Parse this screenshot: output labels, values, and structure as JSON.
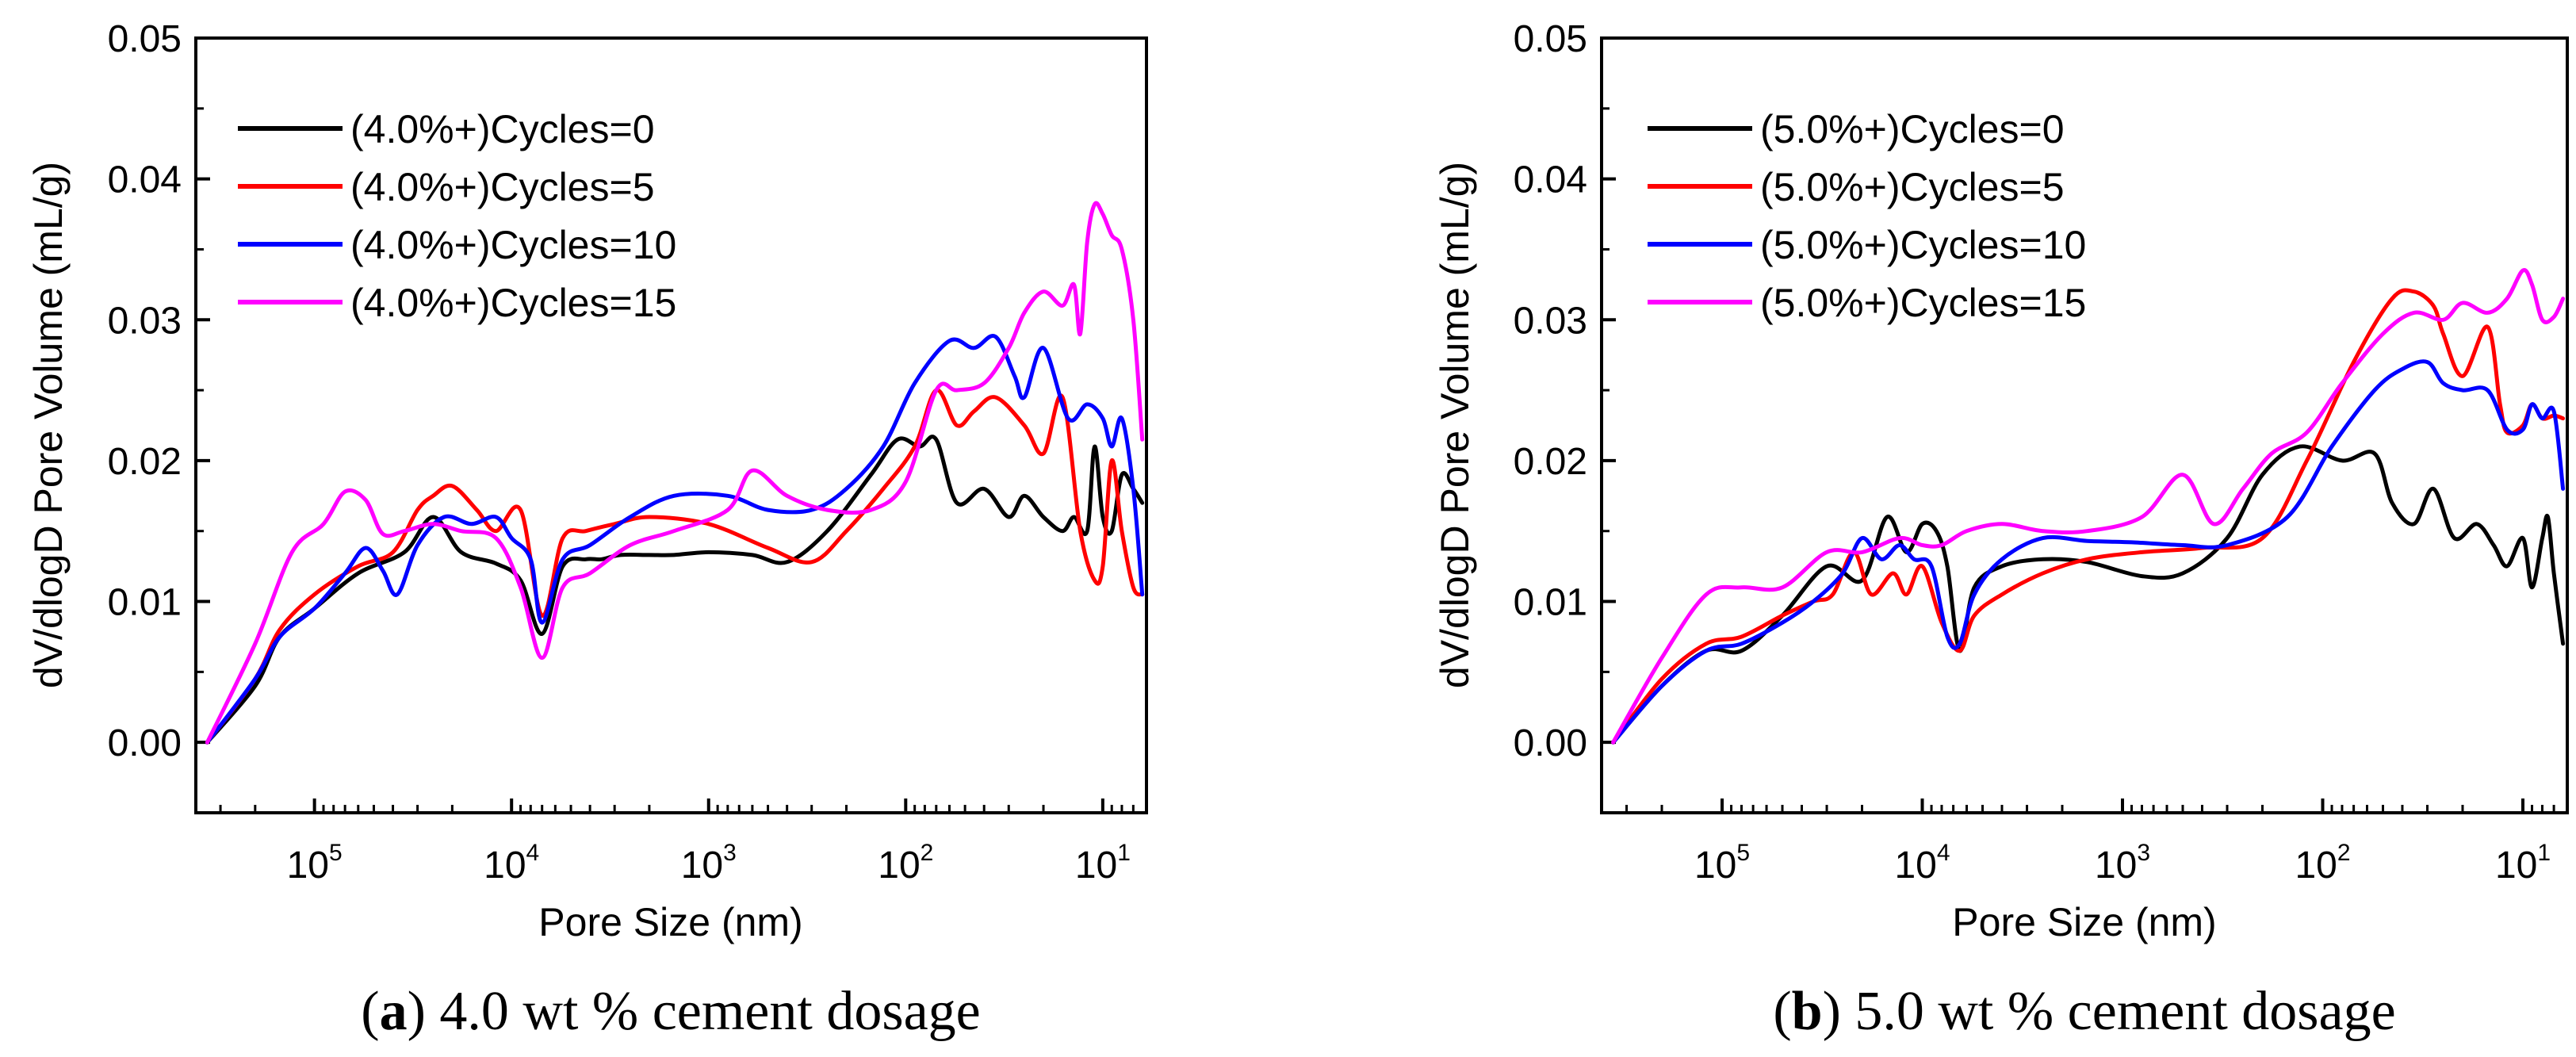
{
  "chart_data": [
    {
      "type": "line",
      "caption_letter": "a",
      "caption_text": " 4.0 wt % cement dosage",
      "xlabel": "Pore Size (nm)",
      "ylabel": "dV/dlogD Pore Volume (mL/g)",
      "x_scale": "log-reversed",
      "xlim": [
        400000,
        6
      ],
      "ylim": [
        -0.005,
        0.05
      ],
      "yticks": [
        "0.00",
        "0.01",
        "0.02",
        "0.03",
        "0.04",
        "0.05"
      ],
      "xticks": [
        {
          "base": "10",
          "exp": "5"
        },
        {
          "base": "10",
          "exp": "4"
        },
        {
          "base": "10",
          "exp": "3"
        },
        {
          "base": "10",
          "exp": "2"
        },
        {
          "base": "10",
          "exp": "1"
        }
      ],
      "grid": false,
      "legend_position": "top-left",
      "series": [
        {
          "name": "(4.0%+)Cycles=0",
          "color": "#000000",
          "x": [
            350000,
            200000,
            150000,
            100000,
            60000,
            35000,
            25000,
            18000,
            12000,
            9000,
            7000,
            5500,
            4200,
            3500,
            2800,
            2000,
            1500,
            1000,
            600,
            400,
            250,
            150,
            110,
            85,
            70,
            55,
            40,
            30,
            25,
            20,
            16,
            14,
            12,
            11,
            10,
            9,
            8,
            7,
            6.3
          ],
          "y": [
            0.0,
            0.004,
            0.0075,
            0.0095,
            0.012,
            0.0135,
            0.016,
            0.0135,
            0.0127,
            0.0115,
            0.0077,
            0.0125,
            0.013,
            0.013,
            0.0133,
            0.0133,
            0.0133,
            0.0135,
            0.0133,
            0.0128,
            0.015,
            0.019,
            0.0215,
            0.021,
            0.0215,
            0.017,
            0.018,
            0.016,
            0.0175,
            0.016,
            0.015,
            0.016,
            0.015,
            0.021,
            0.016,
            0.015,
            0.019,
            0.018,
            0.017
          ]
        },
        {
          "name": "(4.0%+)Cycles=5",
          "color": "#ff0000",
          "x": [
            350000,
            200000,
            150000,
            100000,
            60000,
            40000,
            30000,
            25000,
            20000,
            15000,
            12000,
            9000,
            7000,
            5500,
            4200,
            3000,
            2000,
            1000,
            500,
            300,
            200,
            130,
            90,
            70,
            55,
            45,
            35,
            25,
            20,
            16,
            13,
            11,
            10,
            9,
            8,
            7,
            6.3
          ],
          "y": [
            0.0,
            0.0045,
            0.008,
            0.0105,
            0.0125,
            0.0135,
            0.0165,
            0.0175,
            0.0182,
            0.0165,
            0.015,
            0.0165,
            0.009,
            0.0145,
            0.015,
            0.0155,
            0.016,
            0.0155,
            0.0138,
            0.0128,
            0.015,
            0.018,
            0.021,
            0.025,
            0.0225,
            0.0235,
            0.0245,
            0.0225,
            0.0205,
            0.0245,
            0.015,
            0.0115,
            0.0125,
            0.02,
            0.015,
            0.011,
            0.0105
          ]
        },
        {
          "name": "(4.0%+)Cycles=10",
          "color": "#0000ff",
          "x": [
            350000,
            200000,
            150000,
            100000,
            70000,
            55000,
            45000,
            38000,
            30000,
            22000,
            16000,
            12000,
            10000,
            8000,
            7000,
            5500,
            4000,
            2500,
            1500,
            800,
            500,
            300,
            200,
            130,
            90,
            60,
            45,
            35,
            28,
            25,
            20,
            15,
            12,
            10,
            9,
            8,
            7,
            6.3
          ],
          "y": [
            0.0,
            0.0045,
            0.0075,
            0.0095,
            0.012,
            0.0138,
            0.0122,
            0.0105,
            0.014,
            0.016,
            0.0155,
            0.016,
            0.0145,
            0.013,
            0.0085,
            0.013,
            0.014,
            0.016,
            0.0175,
            0.0175,
            0.0165,
            0.0165,
            0.018,
            0.021,
            0.0255,
            0.0285,
            0.028,
            0.0288,
            0.026,
            0.0245,
            0.028,
            0.023,
            0.024,
            0.023,
            0.021,
            0.023,
            0.018,
            0.0105
          ]
        },
        {
          "name": "(4.0%+)Cycles=15",
          "color": "#ff00ff",
          "x": [
            350000,
            200000,
            130000,
            90000,
            70000,
            55000,
            45000,
            35000,
            25000,
            18000,
            12000,
            9000,
            7000,
            5500,
            4000,
            2500,
            1500,
            800,
            600,
            400,
            250,
            150,
            100,
            70,
            55,
            40,
            30,
            25,
            20,
            16,
            14,
            13,
            12,
            11,
            10,
            9,
            8,
            7,
            6.3
          ],
          "y": [
            0.0,
            0.007,
            0.0135,
            0.0155,
            0.0178,
            0.0172,
            0.0148,
            0.015,
            0.0155,
            0.015,
            0.0145,
            0.011,
            0.006,
            0.011,
            0.012,
            0.014,
            0.015,
            0.0165,
            0.0193,
            0.0175,
            0.0165,
            0.0165,
            0.0185,
            0.025,
            0.025,
            0.0255,
            0.028,
            0.0305,
            0.032,
            0.031,
            0.0325,
            0.029,
            0.0355,
            0.0382,
            0.0375,
            0.036,
            0.035,
            0.03,
            0.0215
          ]
        }
      ]
    },
    {
      "type": "line",
      "caption_letter": "b",
      "caption_text": " 5.0 wt % cement dosage",
      "xlabel": "Pore Size (nm)",
      "ylabel": "dV/dlogD Pore Volume (mL/g)",
      "x_scale": "log-reversed",
      "xlim": [
        400000,
        6
      ],
      "ylim": [
        -0.005,
        0.05
      ],
      "yticks": [
        "0.00",
        "0.01",
        "0.02",
        "0.03",
        "0.04",
        "0.05"
      ],
      "xticks": [
        {
          "base": "10",
          "exp": "5"
        },
        {
          "base": "10",
          "exp": "4"
        },
        {
          "base": "10",
          "exp": "3"
        },
        {
          "base": "10",
          "exp": "2"
        },
        {
          "base": "10",
          "exp": "1"
        }
      ],
      "grid": false,
      "legend_position": "top-left",
      "series": [
        {
          "name": "(5.0%+)Cycles=0",
          "color": "#000000",
          "x": [
            350000,
            200000,
            120000,
            80000,
            50000,
            30000,
            20000,
            15000,
            12000,
            10000,
            8500,
            7500,
            6500,
            5500,
            4000,
            2500,
            1500,
            800,
            500,
            300,
            200,
            130,
            80,
            55,
            45,
            35,
            28,
            22,
            17,
            14,
            12,
            10,
            9,
            8,
            7.5,
            7,
            6.3
          ],
          "y": [
            0.0,
            0.004,
            0.0065,
            0.0065,
            0.009,
            0.0125,
            0.0115,
            0.016,
            0.0135,
            0.0155,
            0.015,
            0.0125,
            0.0065,
            0.011,
            0.0125,
            0.013,
            0.0128,
            0.0118,
            0.012,
            0.0145,
            0.019,
            0.021,
            0.02,
            0.0205,
            0.017,
            0.0155,
            0.018,
            0.0145,
            0.0155,
            0.014,
            0.0125,
            0.0145,
            0.011,
            0.0145,
            0.016,
            0.012,
            0.007
          ]
        },
        {
          "name": "(5.0%+)Cycles=5",
          "color": "#ff0000",
          "x": [
            350000,
            200000,
            120000,
            80000,
            50000,
            35000,
            28000,
            22000,
            18000,
            14000,
            12000,
            10000,
            8000,
            6500,
            5500,
            4000,
            2500,
            1500,
            800,
            400,
            200,
            120,
            70,
            45,
            35,
            28,
            25,
            20,
            15,
            13,
            12,
            10,
            9,
            8,
            7,
            6.3
          ],
          "y": [
            0.0,
            0.0045,
            0.007,
            0.0075,
            0.009,
            0.01,
            0.0105,
            0.0135,
            0.0105,
            0.012,
            0.0105,
            0.0125,
            0.0085,
            0.0065,
            0.009,
            0.0105,
            0.012,
            0.013,
            0.0135,
            0.0138,
            0.0145,
            0.02,
            0.027,
            0.0315,
            0.032,
            0.031,
            0.029,
            0.026,
            0.0295,
            0.024,
            0.022,
            0.0225,
            0.024,
            0.023,
            0.0232,
            0.023
          ]
        },
        {
          "name": "(5.0%+)Cycles=10",
          "color": "#0000ff",
          "x": [
            350000,
            200000,
            120000,
            80000,
            50000,
            35000,
            25000,
            20000,
            16000,
            13000,
            11000,
            9000,
            7500,
            6500,
            5500,
            4000,
            2500,
            1500,
            900,
            500,
            300,
            150,
            90,
            55,
            40,
            30,
            25,
            20,
            15,
            12,
            10,
            9,
            8,
            7,
            6.3
          ],
          "y": [
            0.0,
            0.004,
            0.0065,
            0.007,
            0.0085,
            0.01,
            0.012,
            0.0145,
            0.013,
            0.014,
            0.013,
            0.0125,
            0.0075,
            0.007,
            0.0105,
            0.013,
            0.0145,
            0.0143,
            0.0142,
            0.014,
            0.014,
            0.016,
            0.021,
            0.025,
            0.0265,
            0.027,
            0.0255,
            0.025,
            0.025,
            0.0222,
            0.0222,
            0.024,
            0.023,
            0.0235,
            0.018
          ]
        },
        {
          "name": "(5.0%+)Cycles=15",
          "color": "#ff00ff",
          "x": [
            350000,
            200000,
            120000,
            80000,
            50000,
            30000,
            20000,
            13000,
            10000,
            8000,
            6000,
            4000,
            2500,
            1500,
            800,
            500,
            350,
            250,
            180,
            120,
            80,
            50,
            35,
            25,
            20,
            15,
            12,
            10,
            9,
            8,
            7,
            6.3
          ],
          "y": [
            0.0,
            0.006,
            0.0105,
            0.011,
            0.011,
            0.0135,
            0.0135,
            0.0145,
            0.014,
            0.014,
            0.015,
            0.0155,
            0.015,
            0.015,
            0.016,
            0.019,
            0.0155,
            0.018,
            0.0205,
            0.022,
            0.0255,
            0.029,
            0.0305,
            0.03,
            0.0312,
            0.0305,
            0.0315,
            0.0335,
            0.0325,
            0.03,
            0.0302,
            0.0315
          ]
        }
      ]
    }
  ]
}
